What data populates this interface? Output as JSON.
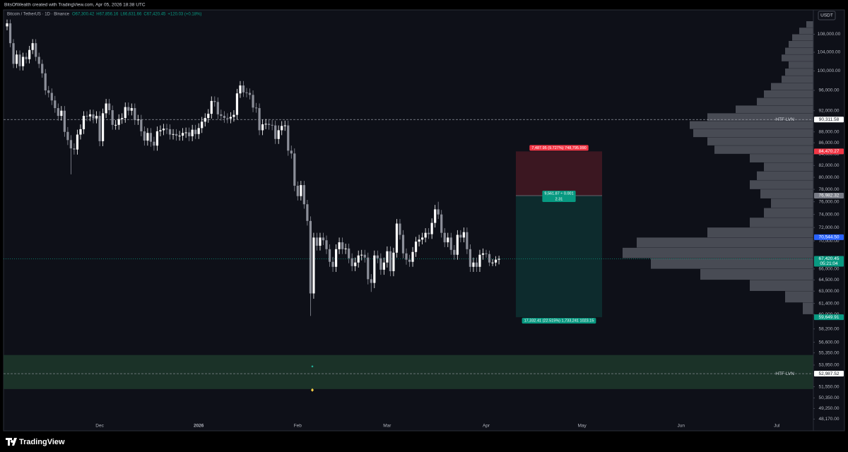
{
  "header": {
    "attribution": "BitsOfWealth created with TradingView.com, Apr 05, 2026 18:38 UTC"
  },
  "footer": {
    "brand": "TradingView"
  },
  "chart_data": {
    "type": "candlestick",
    "symbol": "Bitcoin / TetherUS · 1D · Binance",
    "legend_values": [
      "O67,300.42",
      "H67,856.16",
      "L66,631.66",
      "C67,420.45",
      "+120.03 (+0.18%)"
    ],
    "currency": "USDT",
    "log_scale": true,
    "grid": false,
    "up_color": "#ffffff",
    "down_color": "#8c8f99",
    "ylim": [
      47700,
      113500
    ],
    "yticks": [
      {
        "value": 108000,
        "label": "108,000.00"
      },
      {
        "value": 104000,
        "label": "104,000.00"
      },
      {
        "value": 100000,
        "label": "100,000.00"
      },
      {
        "value": 96000,
        "label": "96,000.00"
      },
      {
        "value": 92000,
        "label": "92,000.00"
      },
      {
        "value": 88000,
        "label": "88,000.00"
      },
      {
        "value": 86000,
        "label": "86,000.00"
      },
      {
        "value": 84000,
        "label": "84,000.00"
      },
      {
        "value": 82000,
        "label": "82,000.00"
      },
      {
        "value": 80000,
        "label": "80,000.00"
      },
      {
        "value": 78000,
        "label": "78,000.00"
      },
      {
        "value": 76000,
        "label": "76,000.00"
      },
      {
        "value": 74000,
        "label": "74,000.00"
      },
      {
        "value": 72000,
        "label": "72,000.00"
      },
      {
        "value": 70000,
        "label": "70,000.00"
      },
      {
        "value": 66000,
        "label": "66,000.00"
      },
      {
        "value": 64500,
        "label": "64,500.00"
      },
      {
        "value": 63000,
        "label": "63,000.00"
      },
      {
        "value": 61400,
        "label": "61,400.00"
      },
      {
        "value": 60000,
        "label": "60,000.00"
      },
      {
        "value": 58200,
        "label": "58,200.00"
      },
      {
        "value": 56600,
        "label": "56,600.00"
      },
      {
        "value": 55350,
        "label": "55,350.00"
      },
      {
        "value": 53950,
        "label": "53,950.00"
      },
      {
        "value": 51550,
        "label": "51,550.00"
      },
      {
        "value": 50350,
        "label": "50,350.00"
      },
      {
        "value": 49250,
        "label": "49,250.00"
      },
      {
        "value": 48170,
        "label": "48,170.00"
      }
    ],
    "month_labels": [
      "Dec",
      "2026",
      "Feb",
      "Mar",
      "Apr",
      "May",
      "Jun",
      "Jul"
    ],
    "open": [
      109800,
      110500,
      106000,
      101500,
      103500,
      101000,
      103000,
      102500,
      104500,
      106000,
      103000,
      101500,
      99500,
      96000,
      95500,
      94000,
      92500,
      91000,
      92000,
      88000,
      86500,
      85000,
      84800,
      87500,
      88500,
      91000,
      90900,
      91300,
      90500,
      91000,
      86300,
      91500,
      93400,
      92100,
      89300,
      89300,
      90400,
      90600,
      92700,
      92000,
      92500,
      90200,
      90300,
      88100,
      86400,
      87800,
      86200,
      85500,
      88100,
      88300,
      88600,
      88500,
      87500,
      87600,
      87300,
      87300,
      87800,
      87900,
      87200,
      88400,
      87600,
      88700,
      89900,
      90600,
      91400,
      93900,
      93700,
      91300,
      91000,
      90600,
      90500,
      90800,
      91200,
      95400,
      97000,
      95600,
      95500,
      95100,
      92600,
      92500,
      88300,
      89400,
      89500,
      89300,
      89200,
      86700,
      88300,
      89100,
      89200,
      84600,
      84100,
      78600,
      76900,
      78700,
      75600,
      73000,
      62700,
      70500,
      69300,
      70500,
      70100,
      68800,
      67000,
      66300,
      68800,
      69800,
      68800,
      68900,
      67500,
      66400,
      66900,
      67900,
      68000,
      67600,
      64600,
      64100,
      67900,
      67500,
      65900,
      66900,
      68500,
      65700,
      68300,
      72600,
      70900,
      68200,
      67300,
      67000,
      68400,
      69900,
      70200,
      70500,
      71200,
      71000,
      72700,
      74800,
      74000,
      71200,
      69800,
      70500,
      68700,
      68000,
      70900,
      70500,
      71300,
      68800,
      66300,
      66900,
      66300,
      68000,
      68200,
      68100,
      66900,
      66900,
      67300.42
    ],
    "high": [
      111400,
      111400,
      106900,
      104400,
      104400,
      103900,
      103900,
      105400,
      106900,
      106900,
      103900,
      102400,
      100400,
      96900,
      96400,
      94900,
      93400,
      92900,
      92900,
      88900,
      87400,
      85900,
      88400,
      89400,
      91900,
      91900,
      92200,
      92200,
      91900,
      91900,
      92400,
      94300,
      94300,
      93000,
      90200,
      91300,
      91500,
      93600,
      93600,
      93400,
      93400,
      91200,
      91200,
      89000,
      88700,
      88700,
      87100,
      89000,
      89200,
      89500,
      89500,
      89400,
      88500,
      88500,
      88200,
      88700,
      88800,
      88800,
      89300,
      89300,
      89600,
      90800,
      91500,
      92300,
      94800,
      94800,
      94600,
      92200,
      91900,
      91500,
      91700,
      92100,
      96300,
      97900,
      97900,
      96500,
      96400,
      96000,
      93500,
      93400,
      90300,
      90400,
      90400,
      90200,
      90100,
      89200,
      90000,
      90100,
      90100,
      85500,
      85000,
      79300,
      79400,
      79400,
      76300,
      73700,
      71200,
      71200,
      71200,
      71200,
      70800,
      69500,
      67700,
      69500,
      70500,
      70500,
      69600,
      69600,
      68200,
      67600,
      68600,
      68700,
      68700,
      68300,
      65300,
      68600,
      68600,
      68200,
      67600,
      69200,
      69200,
      69000,
      73300,
      73300,
      71600,
      68900,
      68000,
      69100,
      70600,
      70900,
      71200,
      71900,
      71900,
      73400,
      75500,
      76000,
      74700,
      71900,
      71200,
      71200,
      69400,
      71600,
      71600,
      72000,
      72000,
      69500,
      67600,
      67600,
      68700,
      68900,
      68700,
      68600,
      67400,
      67800,
      67856.16
    ],
    "low": [
      108900,
      105100,
      100600,
      100600,
      100100,
      100100,
      101600,
      101600,
      103600,
      102100,
      100600,
      98600,
      95100,
      94600,
      93100,
      91600,
      90100,
      90100,
      87100,
      85600,
      80500,
      83900,
      83900,
      86600,
      87600,
      90000,
      90000,
      89600,
      89600,
      85400,
      85400,
      90600,
      91200,
      88400,
      88400,
      88400,
      89500,
      89700,
      91100,
      91100,
      89300,
      89300,
      87200,
      85500,
      85500,
      85300,
      84600,
      84600,
      87200,
      87400,
      87600,
      86600,
      86600,
      86400,
      86400,
      86400,
      86900,
      86300,
      86300,
      86700,
      86700,
      87800,
      89000,
      89700,
      90500,
      92800,
      90400,
      90100,
      89700,
      89600,
      89600,
      89900,
      90300,
      94500,
      94700,
      94600,
      94200,
      91700,
      91600,
      87400,
      87400,
      88500,
      88400,
      88300,
      85800,
      85800,
      87400,
      88200,
      83700,
      83200,
      77700,
      76200,
      76200,
      74900,
      72300,
      59800,
      62000,
      68600,
      68600,
      69400,
      68100,
      66300,
      65600,
      65600,
      68100,
      68100,
      68100,
      66800,
      65700,
      65700,
      66200,
      67200,
      66900,
      63900,
      62900,
      63400,
      66800,
      65200,
      65200,
      66200,
      65000,
      65000,
      67600,
      70200,
      67500,
      66600,
      66300,
      66300,
      67700,
      69200,
      69500,
      69800,
      70300,
      70300,
      72000,
      73300,
      70500,
      69100,
      69100,
      68000,
      67300,
      67300,
      69800,
      69800,
      68100,
      65600,
      65600,
      65600,
      65600,
      67300,
      67600,
      66400,
      66400,
      66400,
      66631.66
    ],
    "close": [
      110500,
      106000,
      101500,
      103500,
      101000,
      103000,
      102500,
      104500,
      106000,
      103000,
      101500,
      99500,
      96000,
      95500,
      94000,
      92500,
      91000,
      92000,
      88000,
      86500,
      85000,
      84800,
      87500,
      88500,
      91000,
      90900,
      91300,
      90500,
      91000,
      86300,
      91500,
      93400,
      92100,
      89300,
      89300,
      90400,
      90600,
      92700,
      92000,
      92500,
      90200,
      90300,
      88100,
      86400,
      87800,
      86200,
      85500,
      88100,
      88300,
      88600,
      88500,
      87500,
      87600,
      87300,
      87300,
      87800,
      87900,
      87200,
      88400,
      87600,
      88700,
      89900,
      90600,
      91400,
      93900,
      93700,
      91300,
      91000,
      90600,
      90500,
      90800,
      91200,
      95400,
      97000,
      95600,
      95500,
      95100,
      92600,
      92500,
      88300,
      89400,
      89500,
      89300,
      89200,
      86700,
      88300,
      89100,
      89200,
      84600,
      84100,
      78600,
      76900,
      78700,
      75600,
      73000,
      62700,
      70500,
      69300,
      70500,
      70100,
      68800,
      67000,
      66300,
      68800,
      69800,
      68800,
      68900,
      67500,
      66400,
      66900,
      67900,
      68000,
      67600,
      64600,
      64100,
      67900,
      67500,
      65900,
      66900,
      68500,
      65700,
      68300,
      72600,
      70900,
      68200,
      67300,
      67000,
      68400,
      69900,
      70200,
      70500,
      71200,
      71000,
      72700,
      74800,
      74000,
      71200,
      69800,
      70500,
      68700,
      68000,
      70900,
      70500,
      71300,
      68800,
      66300,
      66900,
      66300,
      68000,
      68200,
      68100,
      66900,
      66900,
      67300.42,
      67420.45
    ],
    "last_price": {
      "label": "67,420.45",
      "countdown": "05:21:04",
      "color": "#089981"
    },
    "levels": [
      {
        "value": 90311.58,
        "label": "90,311.58",
        "name": "HTF LVN"
      },
      {
        "value": 52987.52,
        "label": "52,987.52",
        "name": "HTF LVN"
      }
    ],
    "price_tags": [
      {
        "value": 70544.5,
        "label": "70,544.50",
        "color": "#2962ff"
      }
    ],
    "position": {
      "stop": {
        "value": 84470.27,
        "label": "84,470.27"
      },
      "entry": {
        "value": 76982.32,
        "label": "76,982.32"
      },
      "target": {
        "value": 59649.91,
        "label": "59,649.91"
      },
      "stop_text": "7,487.95 (9.727%) 748,795.990",
      "entry_text": [
        "9,561.87 ÷ 0.001",
        "2.31"
      ],
      "target_text": "17,332.41 (22.515%) 1,733,241 1023.15",
      "stop_color": "#f23645",
      "target_color": "#089981",
      "entry_color": "#787b86"
    },
    "zone": [
      51300,
      55100
    ],
    "zone_color": "#1f3b2d",
    "markers": [
      {
        "value": 53800,
        "color": "#22ab94",
        "shape": "dot"
      },
      {
        "value": 51200,
        "color": "#f7d046",
        "shape": "diamond"
      }
    ],
    "profile": {
      "bins": [
        60000,
        61500,
        63000,
        64500,
        66000,
        67500,
        69000,
        70500,
        72000,
        73500,
        75000,
        76500,
        78000,
        79500,
        81000,
        82500,
        84000,
        85500,
        87000,
        88500,
        90000,
        91500,
        93000,
        94500,
        96000,
        97500,
        99000,
        100500,
        102000,
        103500,
        105000,
        106500,
        108000,
        109500,
        111000
      ],
      "volumes": [
        15,
        40,
        90,
        160,
        230,
        270,
        250,
        150,
        90,
        70,
        60,
        75,
        90,
        80,
        70,
        90,
        140,
        150,
        170,
        175,
        150,
        110,
        80,
        70,
        60,
        45,
        40,
        35,
        45,
        40,
        35,
        30,
        20,
        10
      ],
      "color": "#787b86"
    }
  }
}
